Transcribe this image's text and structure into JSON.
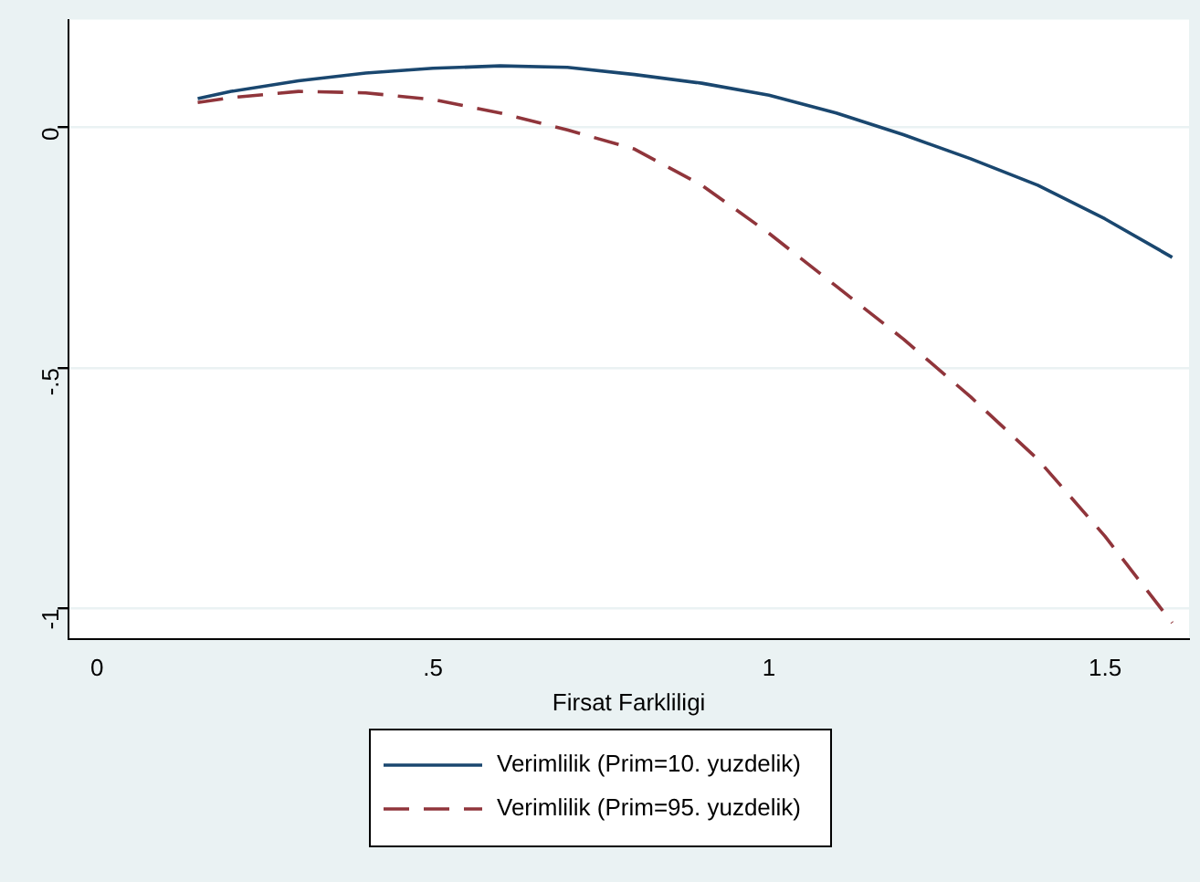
{
  "chart_data": {
    "type": "line",
    "xlabel": "Firsat Farkliligi",
    "x": [
      0.15,
      0.2,
      0.3,
      0.4,
      0.5,
      0.6,
      0.7,
      0.8,
      0.9,
      1,
      1.1,
      1.2,
      1.3,
      1.4,
      1.5,
      1.6
    ],
    "series": [
      {
        "name": "Verimlilik (Prim=10. yuzdelik)",
        "color": "#1a476f",
        "line_style": "solid",
        "values": [
          0.06,
          0.075,
          0.097,
          0.113,
          0.123,
          0.128,
          0.125,
          0.11,
          0.092,
          0.067,
          0.03,
          -0.015,
          -0.065,
          -0.12,
          -0.19,
          -0.27
        ]
      },
      {
        "name": "Verimlilik (Prim=95. yuzdelik)",
        "color": "#90353b",
        "line_style": "dashed",
        "values": [
          0.052,
          0.062,
          0.075,
          0.072,
          0.058,
          0.03,
          -0.005,
          -0.045,
          -0.12,
          -0.22,
          -0.33,
          -0.44,
          -0.56,
          -0.69,
          -0.85,
          -1.03
        ]
      }
    ],
    "xlim": [
      -0.042,
      1.625
    ],
    "xticks": [
      0,
      {
        "value": 0.5,
        "label": ".5"
      },
      1,
      1.5
    ],
    "ylim": [
      -1.063,
      0.224
    ],
    "yticks": [
      {
        "value": -1,
        "label": "-1"
      },
      {
        "value": -0.5,
        "label": "-.5"
      },
      0
    ],
    "grid": "y",
    "legend": "bottom",
    "marker": "none"
  }
}
